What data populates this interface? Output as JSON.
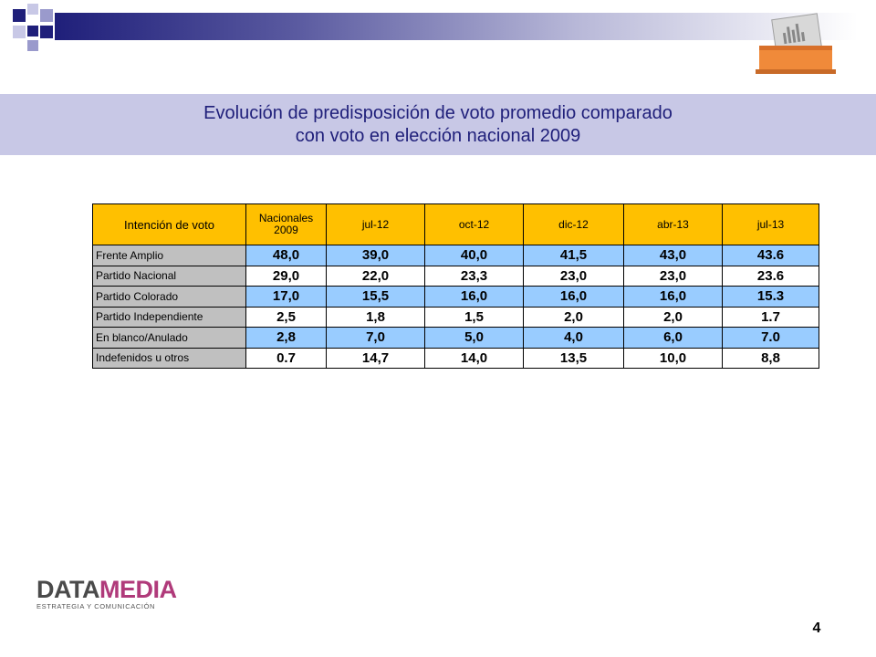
{
  "title": {
    "line1": "Evolución de predisposición de voto promedio comparado",
    "line2": "con voto en elección nacional 2009"
  },
  "colors": {
    "header_bg": "#ffc000",
    "label_bg": "#c0c0c0",
    "row_blue": "#99ccff",
    "title_band": "#c8c8e6",
    "title_text": "#1f1f7a",
    "ballot_orange": "#f08a3a"
  },
  "icons": [
    "ballot-box-icon"
  ],
  "table": {
    "header_label": "Intención de voto",
    "header_nac_line1": "Nacionales",
    "header_nac_line2": "2009",
    "columns": [
      "jul-12",
      "oct-12",
      "dic-12",
      "abr-13",
      "jul-13"
    ],
    "rows": [
      {
        "label": "Frente Amplio",
        "values": [
          "48,0",
          "39,0",
          "40,0",
          "41,5",
          "43,0",
          "43.6"
        ]
      },
      {
        "label": "Partido Nacional",
        "values": [
          "29,0",
          "22,0",
          "23,3",
          "23,0",
          "23,0",
          "23.6"
        ]
      },
      {
        "label": "Partido Colorado",
        "values": [
          "17,0",
          "15,5",
          "16,0",
          "16,0",
          "16,0",
          "15.3"
        ]
      },
      {
        "label": "Partido Independiente",
        "values": [
          "2,5",
          "1,8",
          "1,5",
          "2,0",
          "2,0",
          "1.7"
        ]
      },
      {
        "label": "En blanco/Anulado",
        "values": [
          "2,8",
          "7,0",
          "5,0",
          "4,0",
          "6,0",
          "7.0"
        ]
      },
      {
        "label": "Indefenidos u otros",
        "values": [
          "0.7",
          "14,7",
          "14,0",
          "13,5",
          "10,0",
          "8,8"
        ]
      }
    ]
  },
  "logo": {
    "part1": "DATA",
    "part2": "MEDIA",
    "tagline": "ESTRATEGIA Y COMUNICACIÓN"
  },
  "page_number": "4"
}
